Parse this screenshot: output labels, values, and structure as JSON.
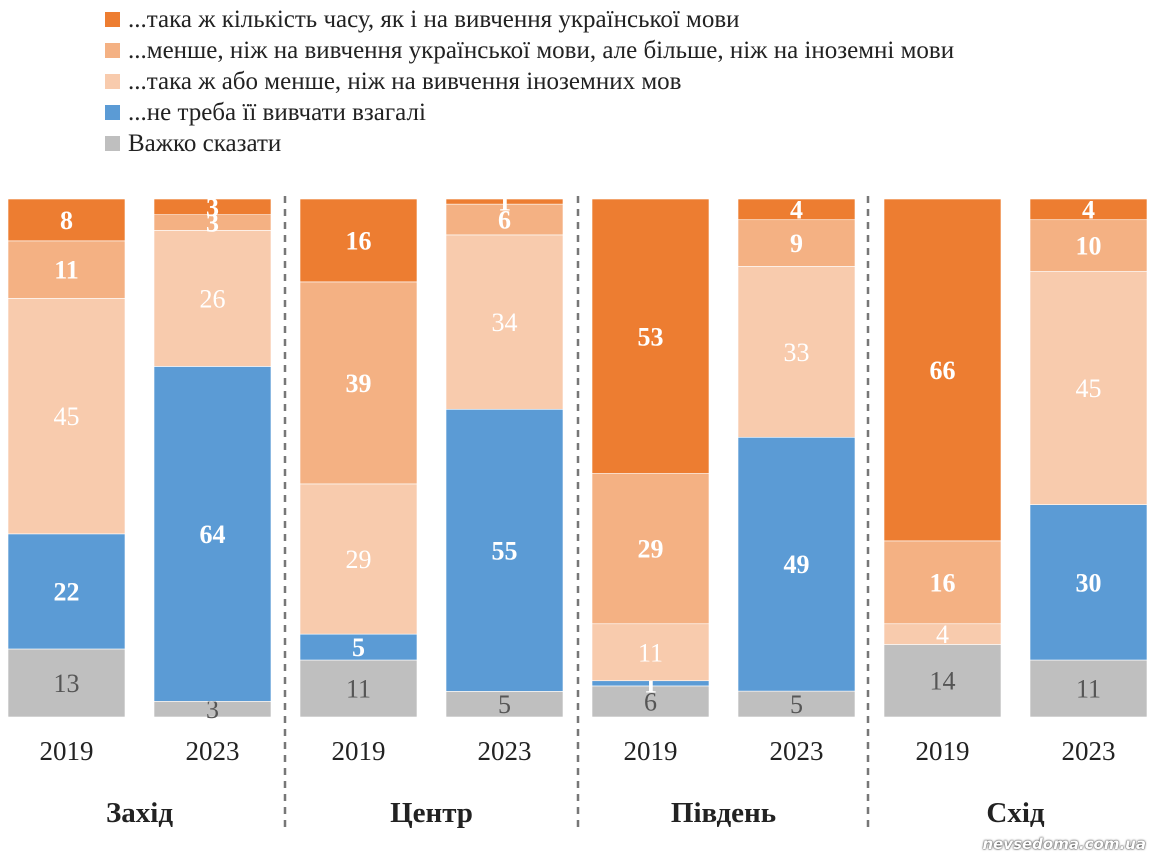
{
  "chart_data": {
    "type": "stacked-bar",
    "y_unit": "%",
    "categories": [
      {
        "group": "Захід",
        "year": "2019"
      },
      {
        "group": "Захід",
        "year": "2023"
      },
      {
        "group": "Центр",
        "year": "2019"
      },
      {
        "group": "Центр",
        "year": "2023"
      },
      {
        "group": "Південь",
        "year": "2019"
      },
      {
        "group": "Південь",
        "year": "2023"
      },
      {
        "group": "Схід",
        "year": "2019"
      },
      {
        "group": "Схід",
        "year": "2023"
      }
    ],
    "groups": [
      "Захід",
      "Центр",
      "Південь",
      "Схід"
    ],
    "series": [
      {
        "name": "Важко сказати",
        "color": "#bfbfbf",
        "label_color": "#555555",
        "bold": false,
        "values": [
          13,
          3,
          11,
          5,
          6,
          5,
          14,
          11
        ]
      },
      {
        "name": "...не треба її вивчати взагалі",
        "color": "#5b9bd5",
        "label_color": "#ffffff",
        "bold": true,
        "values": [
          22,
          64,
          5,
          55,
          1,
          49,
          null,
          30
        ]
      },
      {
        "name": "...така ж або менше, ніж на вивчення іноземних мов",
        "color": "#f8cbad",
        "label_color": "#ffffff",
        "bold": false,
        "values": [
          45,
          26,
          29,
          34,
          11,
          33,
          4,
          45
        ]
      },
      {
        "name": "...менше, ніж на вивчення української мови, але більше, ніж на іноземні мови",
        "color": "#f4b183",
        "label_color": "#ffffff",
        "bold": true,
        "values": [
          11,
          3,
          39,
          6,
          29,
          9,
          16,
          10
        ]
      },
      {
        "name": "...така ж кількість часу, як і на вивчення української мови",
        "color": "#ed7d31",
        "label_color": "#ffffff",
        "bold": true,
        "values": [
          8,
          3,
          16,
          1,
          53,
          4,
          66,
          4
        ]
      }
    ]
  },
  "legend_order": [
    4,
    3,
    2,
    1,
    0
  ],
  "watermark": "nevsedoma.com.ua"
}
